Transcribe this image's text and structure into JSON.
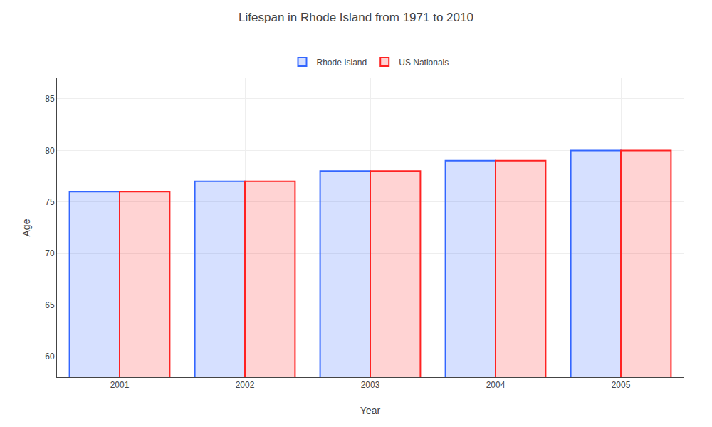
{
  "chart_data": {
    "type": "bar",
    "title": "Lifespan in Rhode Island from 1971 to 2010",
    "x_label": "Year",
    "y_label": "Age",
    "categories": [
      "2001",
      "2002",
      "2003",
      "2004",
      "2005"
    ],
    "series": [
      {
        "name": "Rhode Island",
        "color": "#3366ff",
        "values": [
          76,
          77,
          78,
          79,
          80
        ]
      },
      {
        "name": "US Nationals",
        "color": "#ff2222",
        "values": [
          76,
          77,
          78,
          79,
          80
        ]
      }
    ],
    "ylim": [
      58,
      87
    ],
    "yticks": [
      60,
      65,
      70,
      75,
      80,
      85
    ],
    "grid": true,
    "legend": "top"
  }
}
